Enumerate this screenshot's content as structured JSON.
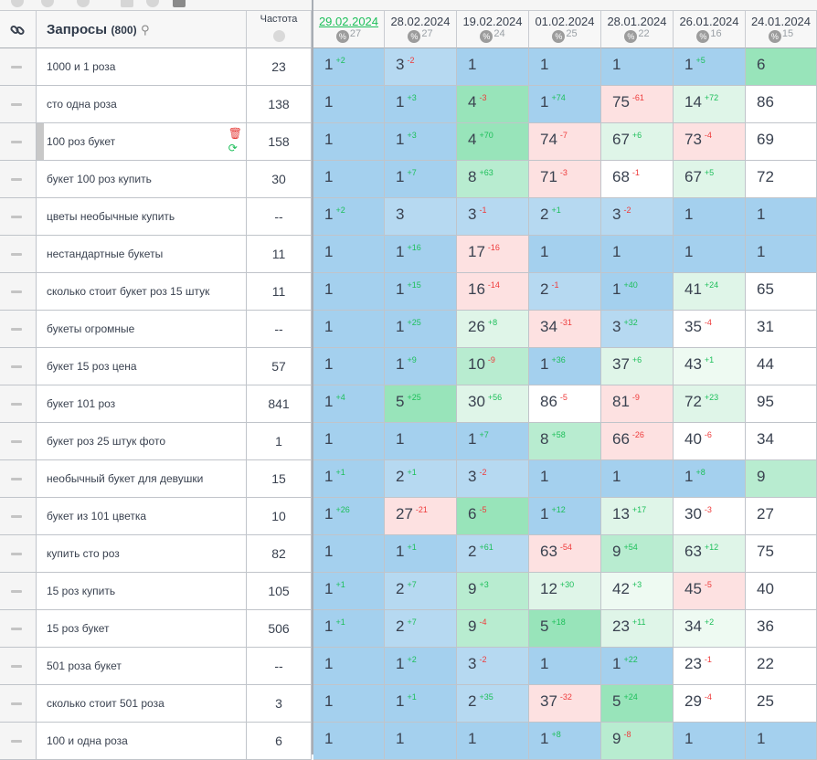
{
  "header": {
    "queries_label": "Запросы",
    "queries_count": "(800)",
    "frequency_label": "Частота"
  },
  "columns": [
    {
      "date": "29.02.2024",
      "count": "27",
      "active": true
    },
    {
      "date": "28.02.2024",
      "count": "27"
    },
    {
      "date": "19.02.2024",
      "count": "24"
    },
    {
      "date": "01.02.2024",
      "count": "25"
    },
    {
      "date": "28.01.2024",
      "count": "22"
    },
    {
      "date": "26.01.2024",
      "count": "16"
    },
    {
      "date": "24.01.2024",
      "count": "15"
    }
  ],
  "percent_symbol": "%",
  "colors": {
    "b1": "#a4d0ee",
    "b2": "#b6d9f1",
    "g1": "#98e4ba",
    "g2": "#b8ecd0",
    "g3": "#dff5e8",
    "g4": "#eefaf2",
    "w": "#ffffff",
    "r": "#fde1e1",
    "up": "#1dbf5a",
    "down": "#ee3b3b"
  },
  "rows": [
    {
      "query": "1000 и 1 роза",
      "freq": "23",
      "cells": [
        [
          "1",
          "+2",
          "b1"
        ],
        [
          "3",
          "-2",
          "b2"
        ],
        [
          "1",
          "",
          "b1"
        ],
        [
          "1",
          "",
          "b1"
        ],
        [
          "1",
          "",
          "b1"
        ],
        [
          "1",
          "+5",
          "b1"
        ],
        [
          "6",
          "",
          "g1"
        ]
      ]
    },
    {
      "query": "сто одна роза",
      "freq": "138",
      "cells": [
        [
          "1",
          "",
          "b1"
        ],
        [
          "1",
          "+3",
          "b1"
        ],
        [
          "4",
          "-3",
          "g1"
        ],
        [
          "1",
          "+74",
          "b1"
        ],
        [
          "75",
          "-61",
          "r"
        ],
        [
          "14",
          "+72",
          "g3"
        ],
        [
          "86",
          "",
          "w"
        ]
      ]
    },
    {
      "query": "100 роз букет",
      "freq": "158",
      "selected": true,
      "cells": [
        [
          "1",
          "",
          "b1"
        ],
        [
          "1",
          "+3",
          "b1"
        ],
        [
          "4",
          "+70",
          "g1"
        ],
        [
          "74",
          "-7",
          "r"
        ],
        [
          "67",
          "+6",
          "g3"
        ],
        [
          "73",
          "-4",
          "r"
        ],
        [
          "69",
          "",
          "w"
        ]
      ]
    },
    {
      "query": "букет 100 роз купить",
      "freq": "30",
      "cells": [
        [
          "1",
          "",
          "b1"
        ],
        [
          "1",
          "+7",
          "b1"
        ],
        [
          "8",
          "+63",
          "g2"
        ],
        [
          "71",
          "-3",
          "r"
        ],
        [
          "68",
          "-1",
          "w"
        ],
        [
          "67",
          "+5",
          "g3"
        ],
        [
          "72",
          "",
          "w"
        ]
      ]
    },
    {
      "query": "цветы необычные купить",
      "freq": "--",
      "cells": [
        [
          "1",
          "+2",
          "b1"
        ],
        [
          "3",
          "",
          "b2"
        ],
        [
          "3",
          "-1",
          "b2"
        ],
        [
          "2",
          "+1",
          "b2"
        ],
        [
          "3",
          "-2",
          "b2"
        ],
        [
          "1",
          "",
          "b1"
        ],
        [
          "1",
          "",
          "b1"
        ]
      ]
    },
    {
      "query": "нестандартные букеты",
      "freq": "11",
      "cells": [
        [
          "1",
          "",
          "b1"
        ],
        [
          "1",
          "+16",
          "b1"
        ],
        [
          "17",
          "-16",
          "r"
        ],
        [
          "1",
          "",
          "b1"
        ],
        [
          "1",
          "",
          "b1"
        ],
        [
          "1",
          "",
          "b1"
        ],
        [
          "1",
          "",
          "b1"
        ]
      ]
    },
    {
      "query": "сколько стоит букет роз 15 штук",
      "freq": "11",
      "cells": [
        [
          "1",
          "",
          "b1"
        ],
        [
          "1",
          "+15",
          "b1"
        ],
        [
          "16",
          "-14",
          "r"
        ],
        [
          "2",
          "-1",
          "b2"
        ],
        [
          "1",
          "+40",
          "b1"
        ],
        [
          "41",
          "+24",
          "g3"
        ],
        [
          "65",
          "",
          "w"
        ]
      ]
    },
    {
      "query": "букеты огромные",
      "freq": "--",
      "cells": [
        [
          "1",
          "",
          "b1"
        ],
        [
          "1",
          "+25",
          "b1"
        ],
        [
          "26",
          "+8",
          "g3"
        ],
        [
          "34",
          "-31",
          "r"
        ],
        [
          "3",
          "+32",
          "b2"
        ],
        [
          "35",
          "-4",
          "w"
        ],
        [
          "31",
          "",
          "w"
        ]
      ]
    },
    {
      "query": "букет 15 роз цена",
      "freq": "57",
      "cells": [
        [
          "1",
          "",
          "b1"
        ],
        [
          "1",
          "+9",
          "b1"
        ],
        [
          "10",
          "-9",
          "g2"
        ],
        [
          "1",
          "+36",
          "b1"
        ],
        [
          "37",
          "+6",
          "g3"
        ],
        [
          "43",
          "+1",
          "g4"
        ],
        [
          "44",
          "",
          "w"
        ]
      ]
    },
    {
      "query": "букет 101 роз",
      "freq": "841",
      "cells": [
        [
          "1",
          "+4",
          "b1"
        ],
        [
          "5",
          "+25",
          "g1"
        ],
        [
          "30",
          "+56",
          "g3"
        ],
        [
          "86",
          "-5",
          "w"
        ],
        [
          "81",
          "-9",
          "r"
        ],
        [
          "72",
          "+23",
          "g3"
        ],
        [
          "95",
          "",
          "w"
        ]
      ]
    },
    {
      "query": "букет роз 25 штук фото",
      "freq": "1",
      "cells": [
        [
          "1",
          "",
          "b1"
        ],
        [
          "1",
          "",
          "b1"
        ],
        [
          "1",
          "+7",
          "b1"
        ],
        [
          "8",
          "+58",
          "g2"
        ],
        [
          "66",
          "-26",
          "r"
        ],
        [
          "40",
          "-6",
          "w"
        ],
        [
          "34",
          "",
          "w"
        ]
      ]
    },
    {
      "query": "необычный букет для девушки",
      "freq": "15",
      "cells": [
        [
          "1",
          "+1",
          "b1"
        ],
        [
          "2",
          "+1",
          "b2"
        ],
        [
          "3",
          "-2",
          "b2"
        ],
        [
          "1",
          "",
          "b1"
        ],
        [
          "1",
          "",
          "b1"
        ],
        [
          "1",
          "+8",
          "b1"
        ],
        [
          "9",
          "",
          "g2"
        ]
      ]
    },
    {
      "query": "букет из 101 цветка",
      "freq": "10",
      "cells": [
        [
          "1",
          "+26",
          "b1"
        ],
        [
          "27",
          "-21",
          "r"
        ],
        [
          "6",
          "-5",
          "g1"
        ],
        [
          "1",
          "+12",
          "b1"
        ],
        [
          "13",
          "+17",
          "g3"
        ],
        [
          "30",
          "-3",
          "w"
        ],
        [
          "27",
          "",
          "w"
        ]
      ]
    },
    {
      "query": "купить сто роз",
      "freq": "82",
      "cells": [
        [
          "1",
          "",
          "b1"
        ],
        [
          "1",
          "+1",
          "b1"
        ],
        [
          "2",
          "+61",
          "b2"
        ],
        [
          "63",
          "-54",
          "r"
        ],
        [
          "9",
          "+54",
          "g2"
        ],
        [
          "63",
          "+12",
          "g3"
        ],
        [
          "75",
          "",
          "w"
        ]
      ]
    },
    {
      "query": "15 роз купить",
      "freq": "105",
      "cells": [
        [
          "1",
          "+1",
          "b1"
        ],
        [
          "2",
          "+7",
          "b2"
        ],
        [
          "9",
          "+3",
          "g2"
        ],
        [
          "12",
          "+30",
          "g3"
        ],
        [
          "42",
          "+3",
          "g4"
        ],
        [
          "45",
          "-5",
          "r"
        ],
        [
          "40",
          "",
          "w"
        ]
      ]
    },
    {
      "query": "15 роз букет",
      "freq": "506",
      "cells": [
        [
          "1",
          "+1",
          "b1"
        ],
        [
          "2",
          "+7",
          "b2"
        ],
        [
          "9",
          "-4",
          "g2"
        ],
        [
          "5",
          "+18",
          "g1"
        ],
        [
          "23",
          "+11",
          "g3"
        ],
        [
          "34",
          "+2",
          "g4"
        ],
        [
          "36",
          "",
          "w"
        ]
      ]
    },
    {
      "query": "501 роза букет",
      "freq": "--",
      "cells": [
        [
          "1",
          "",
          "b1"
        ],
        [
          "1",
          "+2",
          "b1"
        ],
        [
          "3",
          "-2",
          "b2"
        ],
        [
          "1",
          "",
          "b1"
        ],
        [
          "1",
          "+22",
          "b1"
        ],
        [
          "23",
          "-1",
          "w"
        ],
        [
          "22",
          "",
          "w"
        ]
      ]
    },
    {
      "query": "сколько стоит 501 роза",
      "freq": "3",
      "cells": [
        [
          "1",
          "",
          "b1"
        ],
        [
          "1",
          "+1",
          "b1"
        ],
        [
          "2",
          "+35",
          "b2"
        ],
        [
          "37",
          "-32",
          "r"
        ],
        [
          "5",
          "+24",
          "g1"
        ],
        [
          "29",
          "-4",
          "w"
        ],
        [
          "25",
          "",
          "w"
        ]
      ]
    },
    {
      "query": "100 и одна роза",
      "freq": "6",
      "cells": [
        [
          "1",
          "",
          "b1"
        ],
        [
          "1",
          "",
          "b1"
        ],
        [
          "1",
          "",
          "b1"
        ],
        [
          "1",
          "+8",
          "b1"
        ],
        [
          "9",
          "-8",
          "g2"
        ],
        [
          "1",
          "",
          "b1"
        ],
        [
          "1",
          "",
          "b1"
        ]
      ]
    }
  ]
}
